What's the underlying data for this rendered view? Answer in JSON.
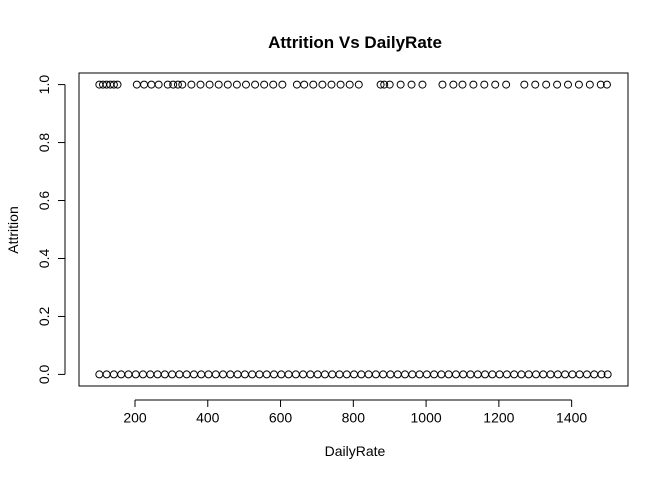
{
  "chart_data": {
    "type": "scatter",
    "title": "Attrition Vs DailyRate",
    "x_label": "DailyRate",
    "y_label": "Attrition",
    "xlim": [
      46.1,
      1554.9
    ],
    "ylim": [
      -0.04,
      1.04
    ],
    "xticks": [
      200,
      400,
      600,
      800,
      1000,
      1200,
      1400
    ],
    "yticks": [
      {
        "value": 0,
        "label": "0.0"
      },
      0.2,
      0.4,
      0.6,
      0.8,
      {
        "value": 1,
        "label": "1.0"
      }
    ],
    "grid": false,
    "color": "#000000",
    "series": [
      {
        "x": [
          102,
          112,
          122,
          132,
          142,
          152,
          205,
          225,
          245,
          265,
          290,
          305,
          318,
          330,
          355,
          380,
          405,
          430,
          455,
          480,
          505,
          530,
          555,
          580,
          605,
          645,
          665,
          690,
          715,
          740,
          765,
          790,
          815,
          875,
          885,
          900,
          930,
          960,
          990,
          1045,
          1075,
          1100,
          1130,
          1160,
          1190,
          1220,
          1270,
          1300,
          1330,
          1360,
          1390,
          1420,
          1450,
          1480,
          1497
        ],
        "values": [
          1,
          1,
          1,
          1,
          1,
          1,
          1,
          1,
          1,
          1,
          1,
          1,
          1,
          1,
          1,
          1,
          1,
          1,
          1,
          1,
          1,
          1,
          1,
          1,
          1,
          1,
          1,
          1,
          1,
          1,
          1,
          1,
          1,
          1,
          1,
          1,
          1,
          1,
          1,
          1,
          1,
          1,
          1,
          1,
          1,
          1,
          1,
          1,
          1,
          1,
          1,
          1,
          1,
          1,
          1
        ]
      },
      {
        "x": [
          102,
          122,
          142,
          162,
          182,
          202,
          222,
          242,
          262,
          282,
          302,
          322,
          342,
          362,
          382,
          402,
          422,
          442,
          462,
          482,
          502,
          522,
          542,
          562,
          582,
          602,
          622,
          642,
          662,
          682,
          702,
          722,
          742,
          762,
          782,
          802,
          822,
          842,
          862,
          882,
          902,
          922,
          942,
          962,
          982,
          1002,
          1022,
          1042,
          1062,
          1082,
          1102,
          1122,
          1142,
          1162,
          1182,
          1202,
          1222,
          1242,
          1262,
          1282,
          1302,
          1322,
          1342,
          1362,
          1382,
          1402,
          1422,
          1442,
          1462,
          1482,
          1499
        ],
        "values": [
          0,
          0,
          0,
          0,
          0,
          0,
          0,
          0,
          0,
          0,
          0,
          0,
          0,
          0,
          0,
          0,
          0,
          0,
          0,
          0,
          0,
          0,
          0,
          0,
          0,
          0,
          0,
          0,
          0,
          0,
          0,
          0,
          0,
          0,
          0,
          0,
          0,
          0,
          0,
          0,
          0,
          0,
          0,
          0,
          0,
          0,
          0,
          0,
          0,
          0,
          0,
          0,
          0,
          0,
          0,
          0,
          0,
          0,
          0,
          0,
          0,
          0,
          0,
          0,
          0,
          0,
          0,
          0,
          0,
          0,
          0
        ]
      }
    ]
  }
}
